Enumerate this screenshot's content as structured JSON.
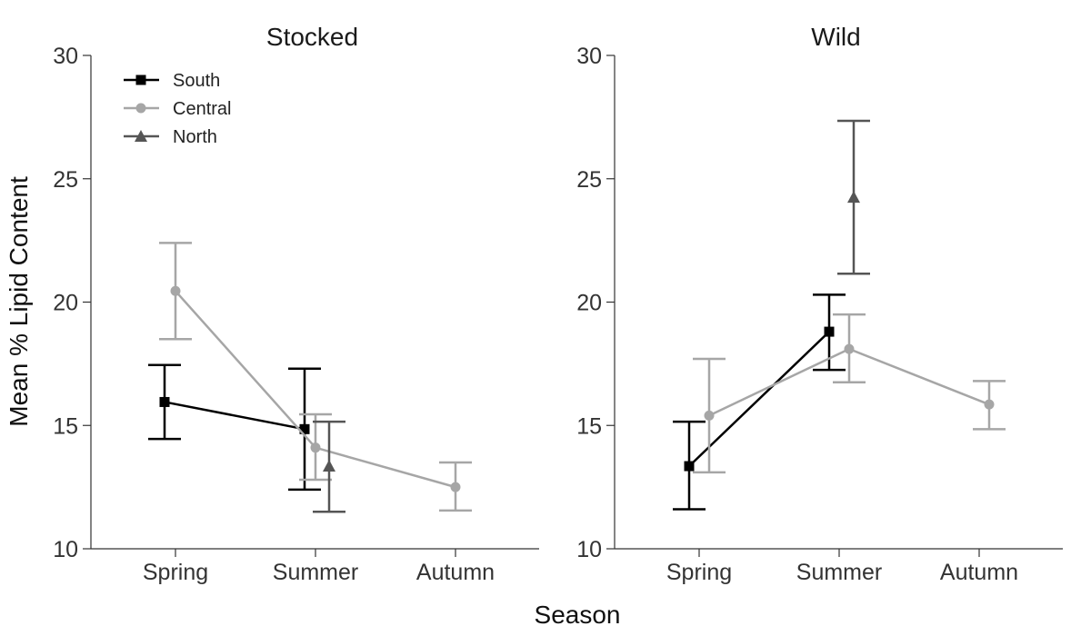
{
  "chart_data": {
    "type": "line",
    "ylabel": "Mean % Lipid Content",
    "xlabel": "Season",
    "categories": [
      "Spring",
      "Summer",
      "Autumn"
    ],
    "ylim": [
      10,
      30
    ],
    "yticks": [
      10,
      15,
      20,
      25,
      30
    ],
    "legend": {
      "placement": "top-left",
      "entries": [
        {
          "name": "South",
          "marker": "square",
          "color": "#000000"
        },
        {
          "name": "Central",
          "marker": "circle",
          "color": "#a6a6a6"
        },
        {
          "name": "North",
          "marker": "triangle",
          "color": "#555555"
        }
      ]
    },
    "panels": [
      {
        "title": "Stocked",
        "series": [
          {
            "name": "South",
            "color": "#000000",
            "marker": "square",
            "points": [
              {
                "x": "Spring",
                "y": 15.95,
                "lo": 14.45,
                "hi": 17.45
              },
              {
                "x": "Summer",
                "y": 14.85,
                "lo": 12.4,
                "hi": 17.3
              }
            ]
          },
          {
            "name": "Central",
            "color": "#a6a6a6",
            "marker": "circle",
            "points": [
              {
                "x": "Spring",
                "y": 20.45,
                "lo": 18.5,
                "hi": 22.4
              },
              {
                "x": "Summer",
                "y": 14.1,
                "lo": 12.8,
                "hi": 15.45
              },
              {
                "x": "Autumn",
                "y": 12.5,
                "lo": 11.55,
                "hi": 13.5
              }
            ]
          },
          {
            "name": "North",
            "color": "#555555",
            "marker": "triangle",
            "points": [
              {
                "x": "Summer",
                "y": 13.35,
                "lo": 11.5,
                "hi": 15.15
              }
            ]
          }
        ]
      },
      {
        "title": "Wild",
        "series": [
          {
            "name": "South",
            "color": "#000000",
            "marker": "square",
            "points": [
              {
                "x": "Spring",
                "y": 13.35,
                "lo": 11.6,
                "hi": 15.15
              },
              {
                "x": "Summer",
                "y": 18.8,
                "lo": 17.25,
                "hi": 20.3
              }
            ]
          },
          {
            "name": "Central",
            "color": "#a6a6a6",
            "marker": "circle",
            "points": [
              {
                "x": "Spring",
                "y": 15.4,
                "lo": 13.1,
                "hi": 17.7
              },
              {
                "x": "Summer",
                "y": 18.1,
                "lo": 16.75,
                "hi": 19.5
              },
              {
                "x": "Autumn",
                "y": 15.85,
                "lo": 14.85,
                "hi": 16.8
              }
            ]
          },
          {
            "name": "North",
            "color": "#555555",
            "marker": "triangle",
            "points": [
              {
                "x": "Summer",
                "y": 24.25,
                "lo": 21.15,
                "hi": 27.35
              }
            ]
          }
        ]
      }
    ]
  }
}
